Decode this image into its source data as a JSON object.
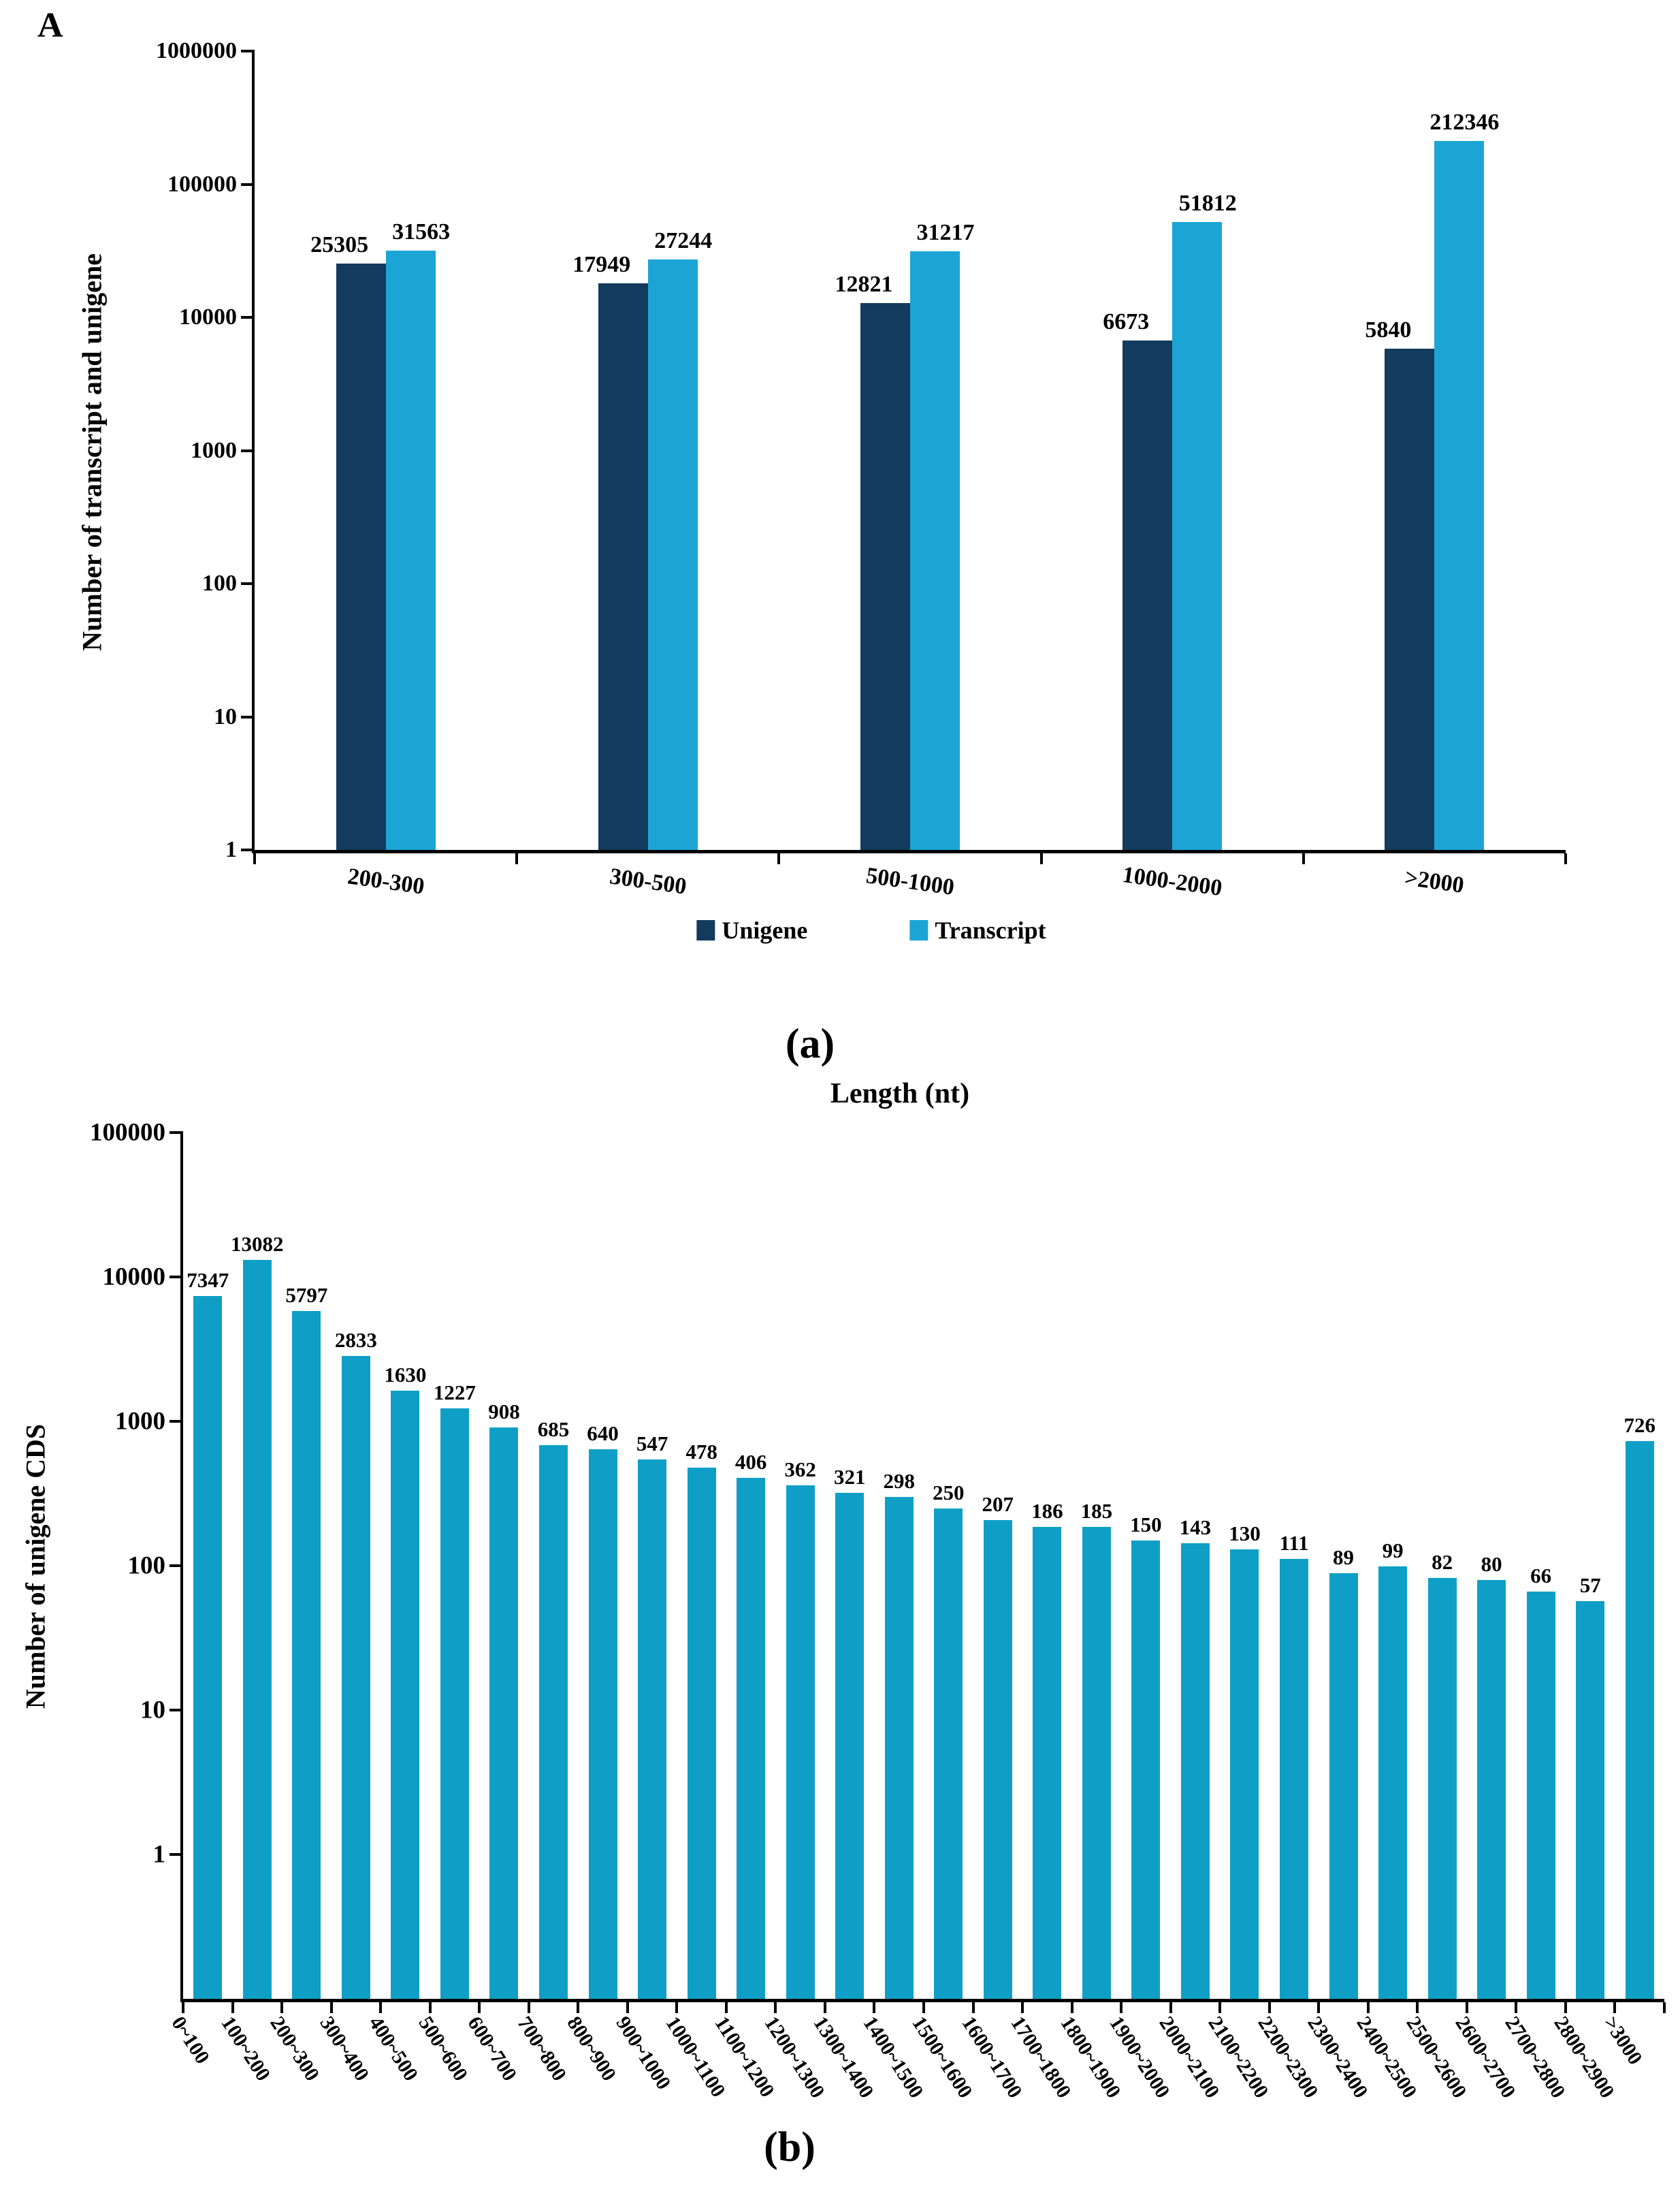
{
  "figure": {
    "panel_label": "A",
    "caption_a": "(a)",
    "caption_b": "(b)"
  },
  "colors": {
    "unigene": "#123b5d",
    "transcript": "#1ca5d4",
    "cds": "#0f9fc6",
    "axis": "#000000"
  },
  "chart_data": [
    {
      "type": "bar",
      "yscale": "log",
      "ylabel": "Number of transcript and unigene",
      "ylim": [
        1,
        1000000
      ],
      "ytick_labels": [
        "1",
        "10",
        "100",
        "1000",
        "10000",
        "100000",
        "1000000"
      ],
      "categories": [
        "200-300",
        "300-500",
        "500-1000",
        "1000-2000",
        ">2000"
      ],
      "series": [
        {
          "name": "Unigene",
          "color_key": "unigene",
          "values": [
            25305,
            17949,
            12821,
            6673,
            5840
          ]
        },
        {
          "name": "Transcript",
          "color_key": "transcript",
          "values": [
            31563,
            27244,
            31217,
            51812,
            212346
          ]
        }
      ],
      "legend_position": "bottom",
      "grid": false
    },
    {
      "type": "bar",
      "yscale": "log",
      "title": "Length (nt)",
      "ylabel": "Number of unigene CDS",
      "ylim": [
        0.1,
        100000
      ],
      "ytick_labels": [
        "1",
        "10",
        "100",
        "1000",
        "10000",
        "100000"
      ],
      "categories": [
        "0~100",
        "100~200",
        "200~300",
        "300~400",
        "400~500",
        "500~600",
        "600~700",
        "700~800",
        "800~900",
        "900~1000",
        "1000~1100",
        "1100~1200",
        "1200~1300",
        "1300~1400",
        "1400~1500",
        "1500~1600",
        "1600~1700",
        "1700~1800",
        "1800~1900",
        "1900~2000",
        "2000~2100",
        "2100~2200",
        "2200~2300",
        "2300~2400",
        "2400~2500",
        "2500~2600",
        "2600~2700",
        "2700~2800",
        "2800~2900",
        ">3000"
      ],
      "values": [
        7347,
        13082,
        5797,
        2833,
        1630,
        1227,
        908,
        685,
        640,
        547,
        478,
        406,
        362,
        321,
        298,
        250,
        207,
        186,
        185,
        150,
        143,
        130,
        111,
        89,
        99,
        82,
        80,
        66,
        57,
        726
      ],
      "legend_position": "none",
      "grid": false
    }
  ]
}
